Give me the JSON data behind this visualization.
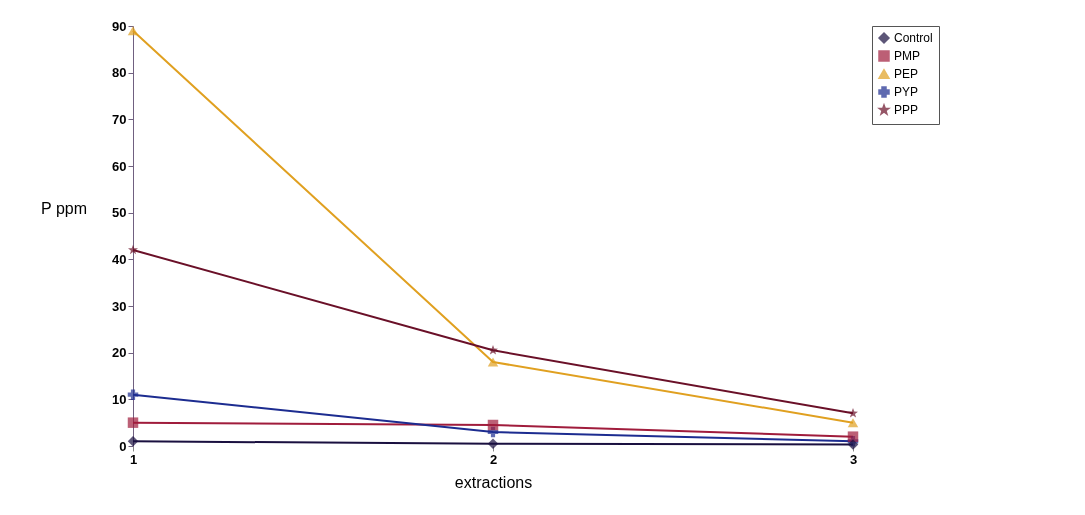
{
  "chart_data": {
    "type": "line",
    "xlabel": "extractions",
    "ylabel": "P ppm",
    "categories": [
      "1",
      "2",
      "3"
    ],
    "series": [
      {
        "name": "Control",
        "color": "#1a1040",
        "marker": "diamond",
        "values": [
          1,
          0.5,
          0.3
        ]
      },
      {
        "name": "PMP",
        "color": "#a01c3c",
        "marker": "square",
        "values": [
          5,
          4.5,
          2
        ]
      },
      {
        "name": "PEP",
        "color": "#e0a020",
        "marker": "triangle",
        "values": [
          89,
          18,
          5
        ]
      },
      {
        "name": "PYP",
        "color": "#1c2c90",
        "marker": "cross",
        "values": [
          11,
          3,
          1
        ]
      },
      {
        "name": "PPP",
        "color": "#6a1028",
        "marker": "star",
        "values": [
          42,
          20.5,
          7
        ]
      }
    ],
    "ylim": [
      0,
      90
    ],
    "yticks": [
      0,
      10,
      20,
      30,
      40,
      50,
      60,
      70,
      80,
      90
    ],
    "grid": false,
    "legend": "right",
    "line_style": "solid"
  }
}
